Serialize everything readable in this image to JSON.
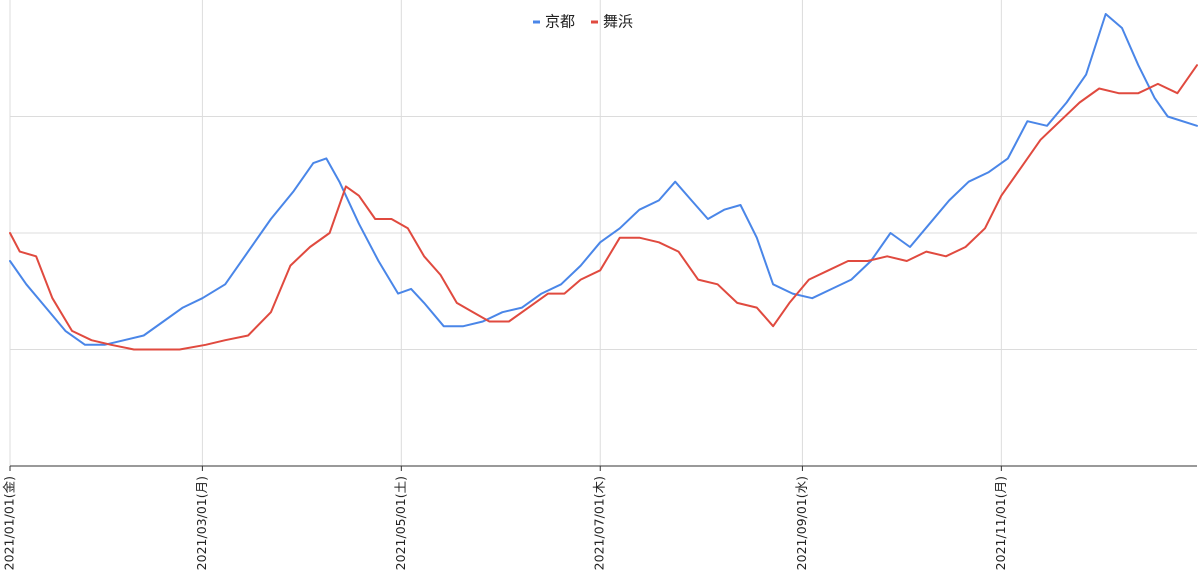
{
  "chart_data": {
    "type": "line",
    "title": "",
    "xlabel": "",
    "ylabel": "",
    "x_range": [
      "2021-01-01",
      "2021-12-31"
    ],
    "ylim": [
      0,
      100
    ],
    "y_gridlines": [
      25,
      50,
      75
    ],
    "grid": true,
    "legend_position": "top",
    "x_ticks": [
      {
        "date": "2021-01-01",
        "label": "2021/01/01(金)"
      },
      {
        "date": "2021-03-01",
        "label": "2021/03/01(月)"
      },
      {
        "date": "2021-05-01",
        "label": "2021/05/01(土)"
      },
      {
        "date": "2021-07-01",
        "label": "2021/07/01(木)"
      },
      {
        "date": "2021-09-01",
        "label": "2021/09/01(水)"
      },
      {
        "date": "2021-11-01",
        "label": "2021/11/01(月)"
      }
    ],
    "series": [
      {
        "name": "京都",
        "color": "#4a86e8",
        "points": [
          [
            "2021-01-01",
            44
          ],
          [
            "2021-01-06",
            39
          ],
          [
            "2021-01-12",
            34
          ],
          [
            "2021-01-18",
            29
          ],
          [
            "2021-01-24",
            26
          ],
          [
            "2021-01-30",
            26
          ],
          [
            "2021-02-05",
            27
          ],
          [
            "2021-02-11",
            28
          ],
          [
            "2021-02-17",
            31
          ],
          [
            "2021-02-23",
            34
          ],
          [
            "2021-03-01",
            36
          ],
          [
            "2021-03-08",
            39
          ],
          [
            "2021-03-15",
            46
          ],
          [
            "2021-03-22",
            53
          ],
          [
            "2021-03-29",
            59
          ],
          [
            "2021-04-04",
            65
          ],
          [
            "2021-04-08",
            66
          ],
          [
            "2021-04-12",
            61
          ],
          [
            "2021-04-18",
            52
          ],
          [
            "2021-04-24",
            44
          ],
          [
            "2021-04-30",
            37
          ],
          [
            "2021-05-04",
            38
          ],
          [
            "2021-05-08",
            35
          ],
          [
            "2021-05-14",
            30
          ],
          [
            "2021-05-20",
            30
          ],
          [
            "2021-05-26",
            31
          ],
          [
            "2021-06-01",
            33
          ],
          [
            "2021-06-07",
            34
          ],
          [
            "2021-06-13",
            37
          ],
          [
            "2021-06-19",
            39
          ],
          [
            "2021-06-25",
            43
          ],
          [
            "2021-07-01",
            48
          ],
          [
            "2021-07-07",
            51
          ],
          [
            "2021-07-13",
            55
          ],
          [
            "2021-07-19",
            57
          ],
          [
            "2021-07-24",
            61
          ],
          [
            "2021-07-29",
            57
          ],
          [
            "2021-08-03",
            53
          ],
          [
            "2021-08-08",
            55
          ],
          [
            "2021-08-13",
            56
          ],
          [
            "2021-08-18",
            49
          ],
          [
            "2021-08-23",
            39
          ],
          [
            "2021-08-29",
            37
          ],
          [
            "2021-09-04",
            36
          ],
          [
            "2021-09-10",
            38
          ],
          [
            "2021-09-16",
            40
          ],
          [
            "2021-09-22",
            44
          ],
          [
            "2021-09-28",
            50
          ],
          [
            "2021-10-04",
            47
          ],
          [
            "2021-10-10",
            52
          ],
          [
            "2021-10-16",
            57
          ],
          [
            "2021-10-22",
            61
          ],
          [
            "2021-10-28",
            63
          ],
          [
            "2021-11-03",
            66
          ],
          [
            "2021-11-09",
            74
          ],
          [
            "2021-11-15",
            73
          ],
          [
            "2021-11-21",
            78
          ],
          [
            "2021-11-27",
            84
          ],
          [
            "2021-12-03",
            97
          ],
          [
            "2021-12-08",
            94
          ],
          [
            "2021-12-13",
            86
          ],
          [
            "2021-12-18",
            79
          ],
          [
            "2021-12-22",
            75
          ],
          [
            "2021-12-31",
            73
          ]
        ]
      },
      {
        "name": "舞浜",
        "color": "#e04a3f",
        "points": [
          [
            "2021-01-01",
            50
          ],
          [
            "2021-01-04",
            46
          ],
          [
            "2021-01-09",
            45
          ],
          [
            "2021-01-14",
            36
          ],
          [
            "2021-01-20",
            29
          ],
          [
            "2021-01-26",
            27
          ],
          [
            "2021-02-01",
            26
          ],
          [
            "2021-02-08",
            25
          ],
          [
            "2021-02-14",
            25
          ],
          [
            "2021-02-22",
            25
          ],
          [
            "2021-03-02",
            26
          ],
          [
            "2021-03-08",
            27
          ],
          [
            "2021-03-15",
            28
          ],
          [
            "2021-03-22",
            33
          ],
          [
            "2021-03-28",
            43
          ],
          [
            "2021-04-03",
            47
          ],
          [
            "2021-04-09",
            50
          ],
          [
            "2021-04-14",
            60
          ],
          [
            "2021-04-18",
            58
          ],
          [
            "2021-04-23",
            53
          ],
          [
            "2021-04-28",
            53
          ],
          [
            "2021-05-03",
            51
          ],
          [
            "2021-05-08",
            45
          ],
          [
            "2021-05-13",
            41
          ],
          [
            "2021-05-18",
            35
          ],
          [
            "2021-05-23",
            33
          ],
          [
            "2021-05-28",
            31
          ],
          [
            "2021-06-03",
            31
          ],
          [
            "2021-06-09",
            34
          ],
          [
            "2021-06-15",
            37
          ],
          [
            "2021-06-20",
            37
          ],
          [
            "2021-06-25",
            40
          ],
          [
            "2021-07-01",
            42
          ],
          [
            "2021-07-07",
            49
          ],
          [
            "2021-07-13",
            49
          ],
          [
            "2021-07-19",
            48
          ],
          [
            "2021-07-25",
            46
          ],
          [
            "2021-07-31",
            40
          ],
          [
            "2021-08-06",
            39
          ],
          [
            "2021-08-12",
            35
          ],
          [
            "2021-08-18",
            34
          ],
          [
            "2021-08-23",
            30
          ],
          [
            "2021-08-28",
            35
          ],
          [
            "2021-09-03",
            40
          ],
          [
            "2021-09-09",
            42
          ],
          [
            "2021-09-15",
            44
          ],
          [
            "2021-09-21",
            44
          ],
          [
            "2021-09-27",
            45
          ],
          [
            "2021-10-03",
            44
          ],
          [
            "2021-10-09",
            46
          ],
          [
            "2021-10-15",
            45
          ],
          [
            "2021-10-21",
            47
          ],
          [
            "2021-10-27",
            51
          ],
          [
            "2021-11-01",
            58
          ],
          [
            "2021-11-07",
            64
          ],
          [
            "2021-11-13",
            70
          ],
          [
            "2021-11-19",
            74
          ],
          [
            "2021-11-25",
            78
          ],
          [
            "2021-12-01",
            81
          ],
          [
            "2021-12-07",
            80
          ],
          [
            "2021-12-13",
            80
          ],
          [
            "2021-12-19",
            82
          ],
          [
            "2021-12-25",
            80
          ],
          [
            "2021-12-31",
            86
          ]
        ]
      }
    ]
  }
}
